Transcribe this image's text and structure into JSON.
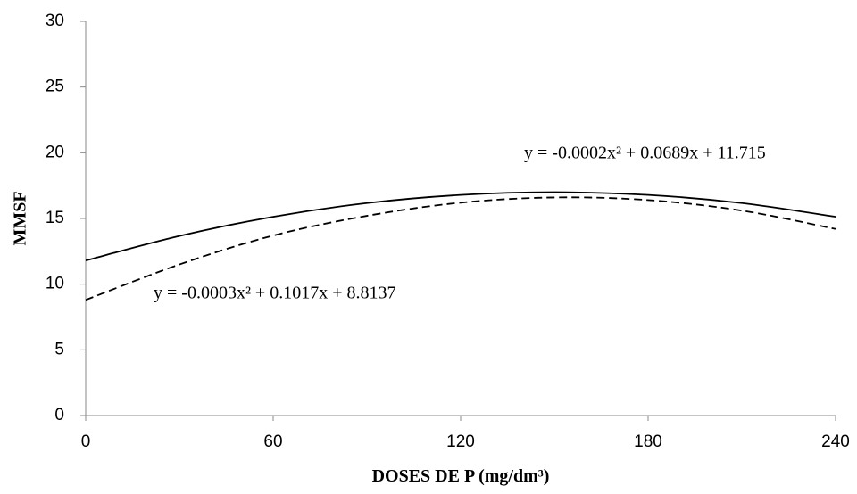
{
  "chart_data": {
    "type": "line",
    "x_label": "DOSES DE P (mg/dm³)",
    "y_label": "MMSF",
    "x": [
      0,
      30,
      60,
      90,
      120,
      150,
      180,
      210,
      240
    ],
    "series": [
      {
        "color": "#000000",
        "style": "solid",
        "values": [
          11.8,
          13.67,
          15.13,
          16.17,
          16.79,
          17.0,
          16.79,
          16.17,
          15.13
        ]
      },
      {
        "color": "#000000",
        "style": "dashed",
        "values": [
          8.8,
          11.5,
          13.7,
          15.2,
          16.2,
          16.6,
          16.4,
          15.6,
          14.2
        ]
      }
    ],
    "annotations": [
      "y = -0.0002x² + 0.0689x + 11.715",
      "y = -0.0003x² + 0.1017x + 8.8137"
    ],
    "xlim": [
      0,
      240
    ],
    "xticks": [
      0,
      60,
      120,
      180,
      240
    ],
    "ylim": [
      0,
      30
    ],
    "yticks": [
      0,
      5,
      10,
      15,
      20,
      25,
      30
    ],
    "grid": false
  }
}
